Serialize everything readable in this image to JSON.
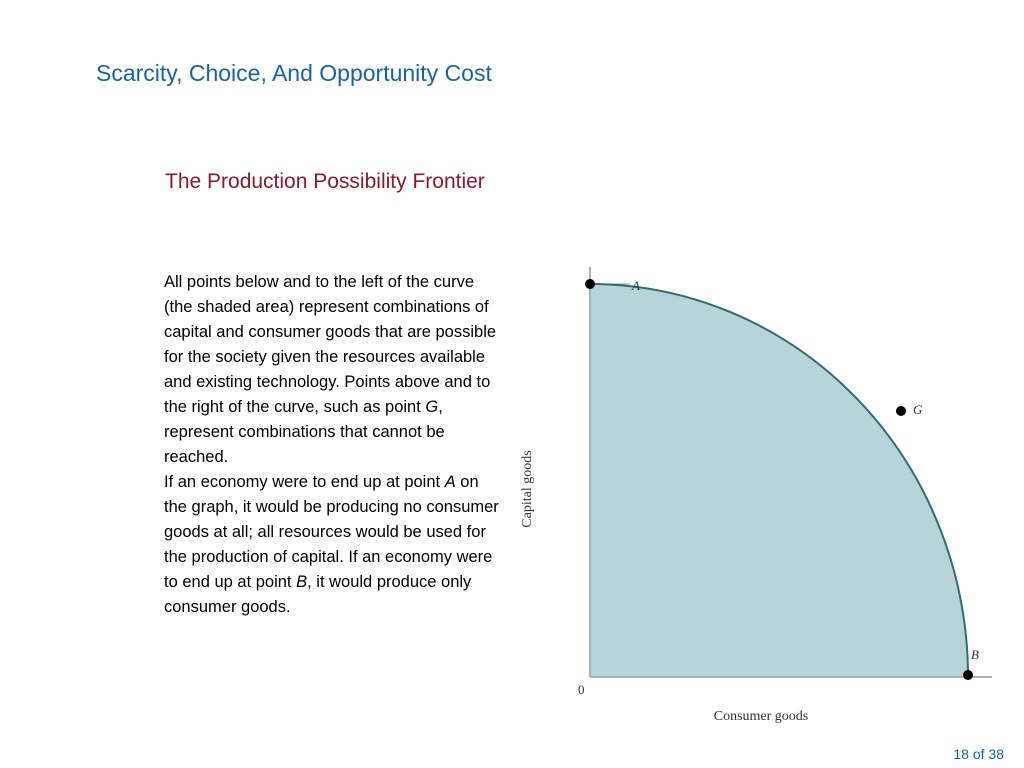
{
  "slide": {
    "title": "Scarcity, Choice, And Opportunity Cost",
    "subtitle": "The Production Possibility Frontier",
    "page_number": "18 of 38"
  },
  "text": {
    "p1_before_g": "All points below and to the left of the curve (the shaded area) represent combinations of capital and consumer goods that are possible for the society given the resources available and existing technology. Points above and to the right of the curve, such as point ",
    "p1_g": "G",
    "p1_after_g": ", represent combinations that cannot be reached.",
    "p2_before_a": "If an economy were to end up at point ",
    "p2_a": "A",
    "p2_between": " on the graph, it would be producing no consumer goods at all; all resources would be used for the production of capital. If an economy were to end up at point ",
    "p2_b": "B",
    "p2_after_b": ", it would produce only consumer goods."
  },
  "diagram": {
    "y_axis_label": "Capital goods",
    "x_axis_label": "Consumer goods",
    "origin_label": "0",
    "point_a_label": "A",
    "point_b_label": "B",
    "point_g_label": "G",
    "fill_color": "#b7d5d8",
    "curve_color": "#2f6e72",
    "axis_color": "#b0b0b0"
  }
}
